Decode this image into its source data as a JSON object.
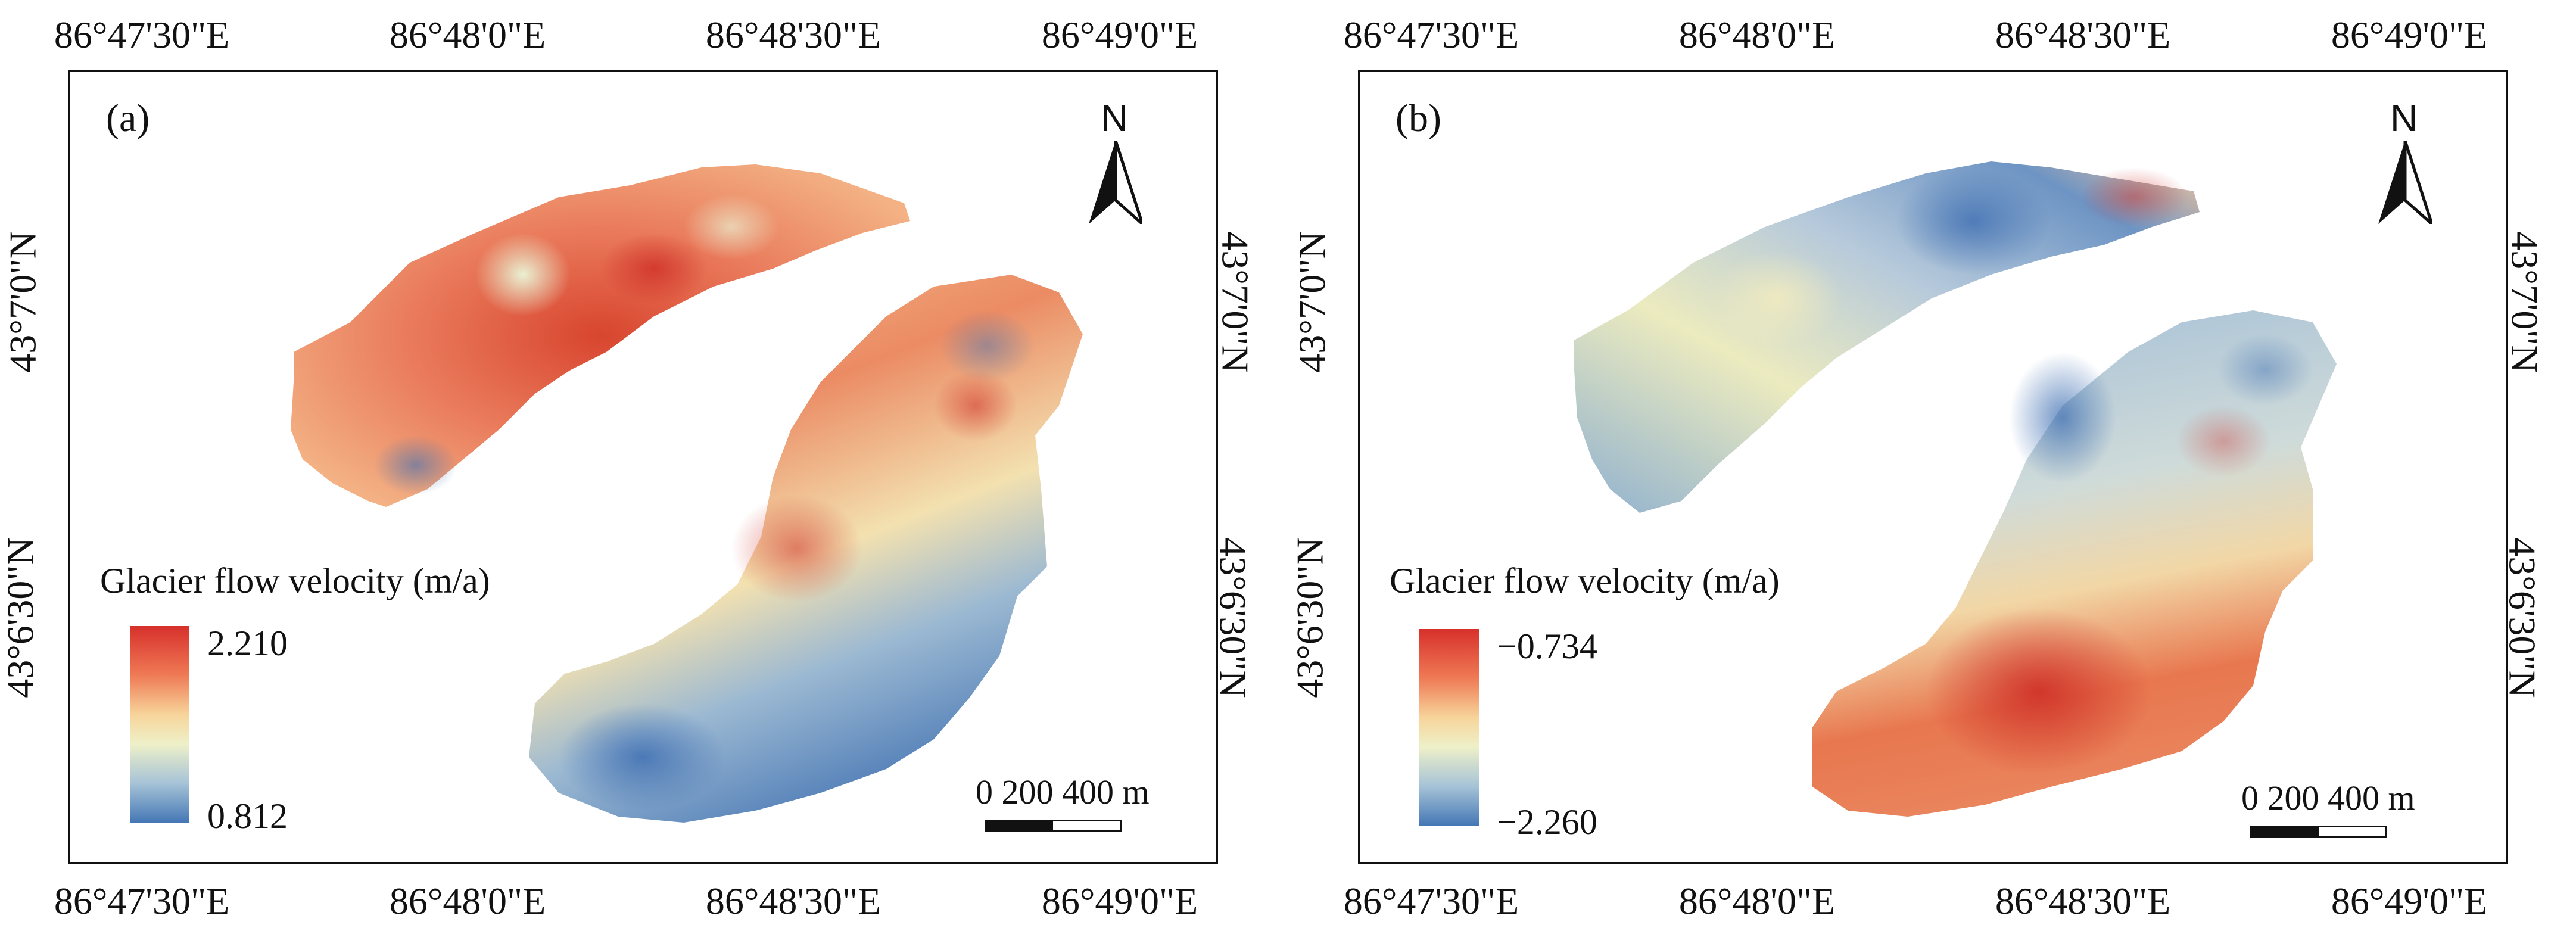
{
  "panels": [
    {
      "panel_label": "(a)",
      "north_label": "N",
      "lon_labels_top": [
        "86°47'30\"E",
        "86°48'0\"E",
        "86°48'30\"E",
        "86°49'0\"E"
      ],
      "lon_labels_bottom": [
        "86°47'30\"E",
        "86°48'0\"E",
        "86°48'30\"E",
        "86°49'0\"E"
      ],
      "lat_labels_left": [
        "43°7'0\"N",
        "43°6'30\"N"
      ],
      "lat_labels_right": [
        "43°7'0\"N",
        "43°6'30\"N"
      ],
      "legend": {
        "title": "Glacier flow velocity (m/a)",
        "max": "2.210",
        "min": "0.812"
      },
      "scale": {
        "label": "0    200 400 m"
      }
    },
    {
      "panel_label": "(b)",
      "north_label": "N",
      "lon_labels_top": [
        "86°47'30\"E",
        "86°48'0\"E",
        "86°48'30\"E",
        "86°49'0\"E"
      ],
      "lon_labels_bottom": [
        "86°47'30\"E",
        "86°48'0\"E",
        "86°48'30\"E",
        "86°49'0\"E"
      ],
      "lat_labels_left": [
        "43°7'0\"N",
        "43°6'30\"N"
      ],
      "lat_labels_right": [
        "43°7'0\"N",
        "43°6'30\"N"
      ],
      "legend": {
        "title": "Glacier flow velocity (m/a)",
        "max": "−0.734",
        "min": "−2.260"
      },
      "scale": {
        "label": "0    200 400 m"
      }
    }
  ],
  "colors": {
    "ramp_high": "#d7302b",
    "ramp_mid_high": "#f5a06a",
    "ramp_mid": "#f7f1b7",
    "ramp_mid_low": "#a9c4d6",
    "ramp_low": "#4577b5"
  }
}
